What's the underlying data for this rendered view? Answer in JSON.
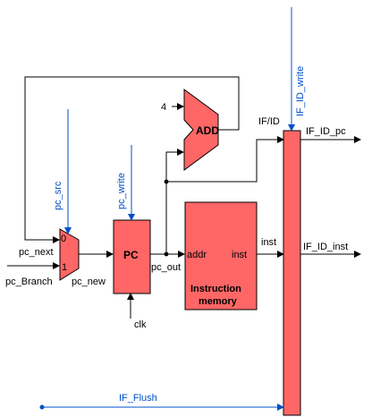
{
  "colors": {
    "block_fill": "#ff6666",
    "block_stroke": "#000000",
    "control": "#0050c8",
    "wire": "#000000"
  },
  "signals": {
    "pc_src": "pc_src",
    "pc_write": "pc_write",
    "IF_ID_write": "IF_ID_write",
    "IF_Flush": "IF_Flush",
    "pc_next": "pc_next",
    "pc_Branch": "pc_Branch",
    "pc_new": "pc_new",
    "pc_out": "pc_out",
    "clk": "clk",
    "inst": "inst",
    "IF_ID_pc": "IF_ID_pc",
    "IF_ID_inst": "IF_ID_inst",
    "const_4": "4"
  },
  "mux": {
    "in0": "0",
    "in1": "1"
  },
  "blocks": {
    "pc": "PC",
    "adder": "ADD",
    "imem_addr": "addr",
    "imem_inst": "inst",
    "imem_title_line1": "Instruction",
    "imem_title_line2": "memory",
    "ifid": "IF/ID"
  }
}
